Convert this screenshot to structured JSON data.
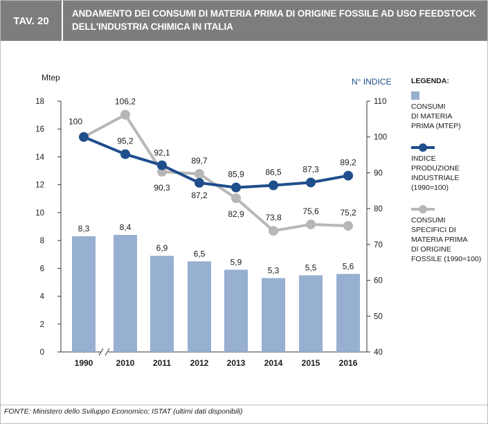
{
  "header": {
    "tag": "TAV. 20",
    "title_line1": "ANDAMENTO DEI CONSUMI DI MATERIA PRIMA DI ORIGINE FOSSILE AD USO FEEDSTOCK",
    "title_line2": "DELL'INDUSTRIA CHIMICA IN ITALIA"
  },
  "legend": {
    "title": "LEGENDA:",
    "items": [
      {
        "label_lines": [
          "CONSUMI",
          "DI MATERIA",
          "PRIMA (Mtep)"
        ],
        "color": "#97afd0"
      },
      {
        "label_lines": [
          "INDICE",
          "PRODUZIONE",
          "INDUSTRIALE",
          "(1990=100)"
        ],
        "color": "#1f4e8c"
      },
      {
        "label_lines": [
          "CONSUMI",
          "SPECIFICI DI",
          "MATERIA PRIMA",
          "DI ORIGINE",
          "FOSSILE (1990=100)"
        ],
        "color": "#b7b7b7"
      }
    ]
  },
  "footer": {
    "source": "FONTE: Ministero dello Sviluppo Economico; ISTAT (ultimi dati disponibili)"
  },
  "chart_data": {
    "type": "bar",
    "categories": [
      "1990",
      "2010",
      "2011",
      "2012",
      "2013",
      "2014",
      "2015",
      "2016"
    ],
    "ylabel_left": "Mtep",
    "ylabel_right": "N° INDICE",
    "ylim_left": [
      0,
      18
    ],
    "yticks_left": [
      0,
      2,
      4,
      6,
      8,
      10,
      12,
      14,
      16,
      18
    ],
    "ylim_right": [
      40,
      110
    ],
    "yticks_right": [
      40,
      50,
      60,
      70,
      80,
      90,
      100,
      110
    ],
    "bars": {
      "name": "CONSUMI DI MATERIA PRIMA (Mtep)",
      "values": [
        8.3,
        8.4,
        6.9,
        6.5,
        5.9,
        5.3,
        5.5,
        5.6
      ],
      "labels": [
        "8,3",
        "8,4",
        "6,9",
        "6,5",
        "5,9",
        "5,3",
        "5,5",
        "5,6"
      ],
      "color": "#97afd0"
    },
    "series": [
      {
        "name": "INDICE PRODUZIONE INDUSTRIALE (1990=100)",
        "values": [
          100,
          95.2,
          92.1,
          87.2,
          85.9,
          86.5,
          87.3,
          89.2
        ],
        "labels": [
          "100",
          "95,2",
          "92,1",
          "87,2",
          "85,9",
          "86,5",
          "87,3",
          "89,2"
        ],
        "color": "#1f4e8c"
      },
      {
        "name": "CONSUMI SPECIFICI DI MATERIA PRIMA DI ORIGINE FOSSILE (1990=100)",
        "values": [
          100,
          106.2,
          90.3,
          89.7,
          82.9,
          73.8,
          75.6,
          75.2
        ],
        "labels": [
          "",
          "106,2",
          "90,3",
          "89,7",
          "82,9",
          "73,8",
          "75,6",
          "75,2"
        ],
        "color": "#b7b7b7"
      }
    ],
    "axis_break_after": "1990"
  }
}
